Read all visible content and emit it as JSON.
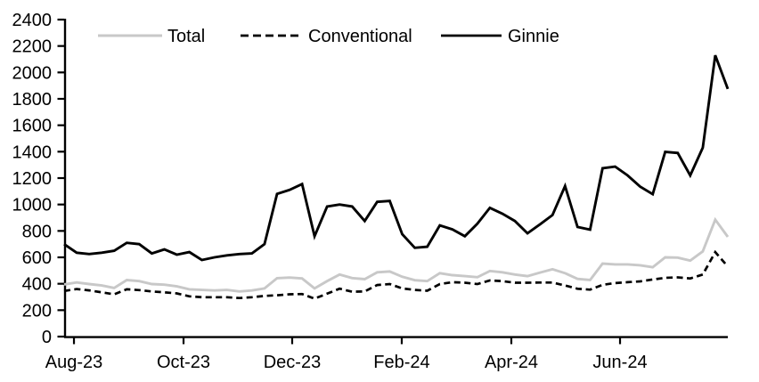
{
  "chart_data": {
    "type": "line",
    "title": "",
    "background": "#ffffff",
    "grid": "off",
    "legend_position": "top-inside",
    "x_axis": {
      "tick_labels": [
        "Aug-23",
        "Oct-23",
        "Dec-23",
        "Feb-24",
        "Apr-24",
        "Jun-24"
      ],
      "tick_positions": [
        0.0148,
        0.1799,
        0.3436,
        0.5087,
        0.6738,
        0.8376
      ]
    },
    "y_axis": {
      "min": 0,
      "max": 2400,
      "step": 200,
      "tick_labels": [
        "0",
        "200",
        "400",
        "600",
        "800",
        "1000",
        "1200",
        "1400",
        "1600",
        "1800",
        "2000",
        "2200",
        "2400"
      ]
    },
    "colors": {
      "total": "#c8c8c8",
      "conventional": "#000000",
      "ginnie": "#000000",
      "axis": "#000000"
    },
    "series": [
      {
        "name": "Total",
        "style": "solid",
        "color_key": "total",
        "values": [
          395,
          410,
          398,
          387,
          368,
          428,
          420,
          398,
          393,
          380,
          358,
          353,
          349,
          353,
          342,
          349,
          365,
          442,
          447,
          440,
          365,
          420,
          470,
          443,
          435,
          487,
          493,
          453,
          427,
          420,
          480,
          465,
          458,
          450,
          497,
          487,
          470,
          458,
          485,
          510,
          480,
          437,
          428,
          553,
          547,
          547,
          540,
          525,
          600,
          598,
          575,
          645,
          885,
          755
        ]
      },
      {
        "name": "Conventional",
        "style": "dashed",
        "color_key": "conventional",
        "values": [
          345,
          360,
          350,
          335,
          320,
          358,
          352,
          342,
          335,
          327,
          305,
          298,
          298,
          298,
          292,
          298,
          308,
          313,
          320,
          322,
          287,
          325,
          363,
          340,
          342,
          390,
          398,
          365,
          353,
          347,
          398,
          412,
          408,
          398,
          425,
          420,
          408,
          408,
          409,
          409,
          387,
          362,
          355,
          392,
          405,
          412,
          418,
          432,
          445,
          448,
          440,
          470,
          640,
          530
        ]
      },
      {
        "name": "Ginnie",
        "style": "solid",
        "color_key": "ginnie",
        "values": [
          700,
          635,
          625,
          635,
          650,
          710,
          700,
          630,
          660,
          620,
          640,
          580,
          600,
          615,
          625,
          630,
          700,
          1080,
          1110,
          1155,
          760,
          985,
          1000,
          985,
          875,
          1020,
          1027,
          775,
          672,
          680,
          842,
          812,
          760,
          855,
          975,
          930,
          875,
          782,
          850,
          920,
          1140,
          830,
          810,
          1275,
          1287,
          1220,
          1135,
          1078,
          1398,
          1390,
          1220,
          1430,
          2130,
          1875
        ]
      }
    ]
  }
}
